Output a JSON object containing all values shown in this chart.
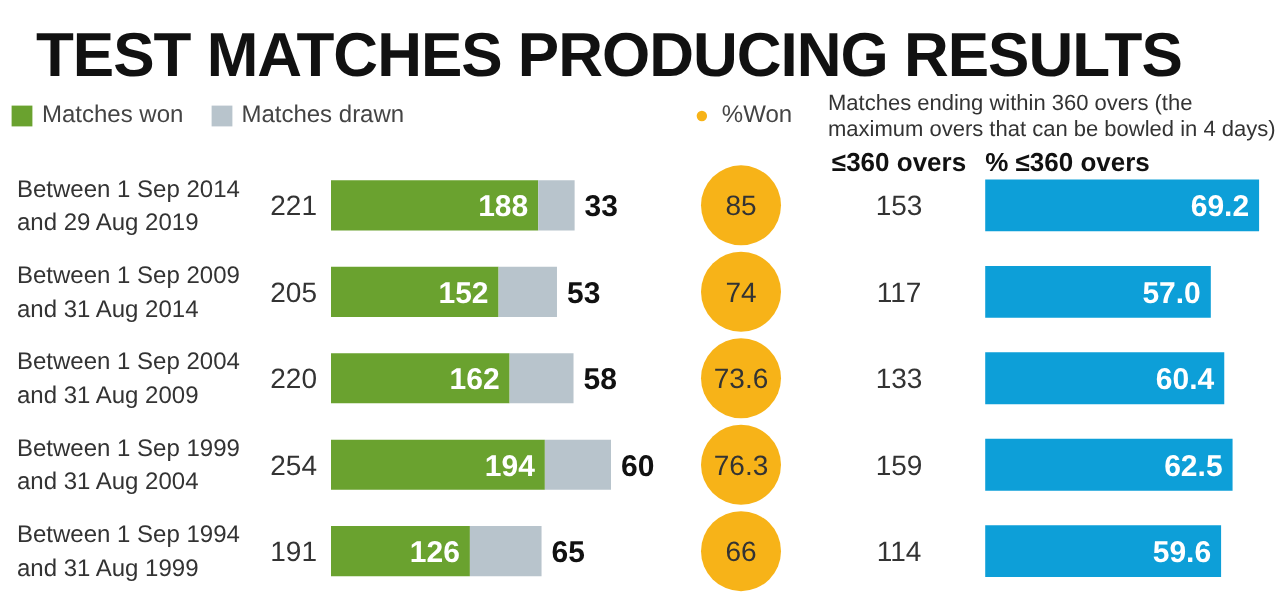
{
  "chart_data": [
    {
      "type": "bar",
      "orientation": "horizontal",
      "stacked": true,
      "title": "TEST MATCHES PRODUCING RESULTS",
      "categories": [
        "Between 1 Sep 2014 and 29 Aug 2019",
        "Between 1 Sep 2009 and 31 Aug 2014",
        "Between 1 Sep 2004 and 31 Aug 2009",
        "Between 1 Sep 1999 and 31 Aug 2004",
        "Between 1 Sep 1994 and 31 Aug 1999"
      ],
      "series": [
        {
          "name": "Matches won",
          "color": "#6aa22f",
          "values": [
            188,
            152,
            162,
            194,
            126
          ]
        },
        {
          "name": "Matches drawn",
          "color": "#b8c4cc",
          "values": [
            33,
            53,
            58,
            60,
            65
          ]
        }
      ],
      "totals": [
        "221",
        "205",
        "220",
        "254",
        "191"
      ],
      "data_labels": true,
      "legend": "top left"
    },
    {
      "type": "other",
      "series": [
        {
          "name": "%Won",
          "color": "#f7b318",
          "values": [
            85,
            74,
            73.6,
            76.3,
            66
          ]
        }
      ],
      "data_labels": true,
      "legend": "top"
    },
    {
      "type": "other",
      "title": "≤360 overs",
      "annotations": [
        "Matches ending within 360 overs (the maximum overs that can be bowled in 4 days)"
      ],
      "values": [
        153,
        117,
        133,
        159,
        114
      ],
      "data_labels": true
    },
    {
      "type": "bar",
      "orientation": "horizontal",
      "title": "% ≤360 overs",
      "values": [
        69.2,
        57.0,
        60.4,
        62.5,
        59.6
      ],
      "value_labels": [
        "69.2",
        "57.0",
        "60.4",
        "62.5",
        "59.6"
      ],
      "color": "#0d9fd8"
    }
  ]
}
